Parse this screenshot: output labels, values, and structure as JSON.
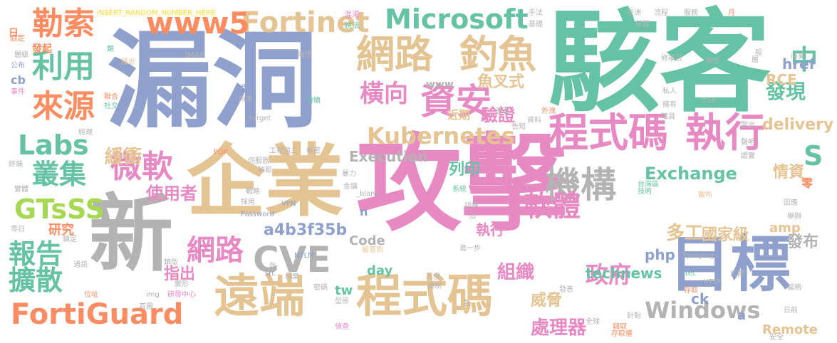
{
  "palette": {
    "blue": "#8fa0cc",
    "green": "#66c2a5",
    "pink": "#e78ac3",
    "tan": "#e5c494",
    "orange": "#fc8d62",
    "gray": "#b3b3b3",
    "lime": "#a6d854",
    "yellow": "#ffd92f"
  },
  "words": [
    "漏洞",
    "駭客",
    "攻擊",
    "企業",
    "新",
    "目標",
    "遠端",
    "程式碼",
    "網路",
    "釣魚",
    "資安",
    "程式碼",
    "執行",
    "Kubernetes",
    "Microsoft",
    "Fortinet",
    "www5",
    "勒索",
    "利用",
    "來源",
    "Labs",
    "叢集",
    "微軟",
    "GTsSS",
    "報告",
    "擴散",
    "FortiGuard",
    "CVE",
    "網路",
    "機構",
    "軟體",
    "政府",
    "Windows",
    "處理器",
    "Exchange",
    "橫向",
    "驗證",
    "魚叉式",
    "中",
    "發現",
    "delivery",
    "情資",
    "S",
    "列印",
    "使用者",
    "緩衝",
    "a4b3f35b",
    "Execution",
    "Code",
    "day",
    "technews",
    "組織",
    "威脅",
    "執行",
    "多工",
    "國家級",
    "href",
    "RCE",
    "php",
    "amp",
    "發布",
    "ck",
    "tw",
    "Remote",
    "指出",
    "研究",
    "INSERT_RANDOM_NUMBER_HERE",
    "發起",
    "協定",
    "IMAP",
    "Password",
    "VPN",
    "NTLM",
    "_blank",
    "www",
    "近期",
    "n",
    "a",
    "零",
    "target",
    "TOR",
    "Spraying",
    "HTTP",
    "tec",
    "POP",
    "src",
    "img",
    "研發中心",
    "混淆",
    "說法",
    "層級",
    "公布",
    "事件",
    "聯合",
    "社交",
    "接近",
    "類",
    "屬性",
    "日",
    "cb",
    "提出",
    "尚未",
    "持續",
    "透過",
    "告知",
    "資料",
    "外洩",
    "職員",
    "私人",
    "擁有",
    "警示",
    "聲明",
    "證實",
    "台灣區",
    "技術",
    "散布",
    "因應",
    "舉辦",
    "入侵",
    "機制",
    "留意到",
    "進一步",
    "全球",
    "竊取",
    "存取權",
    "存取",
    "偵查",
    "型態",
    "發表",
    "密碼",
    "林樂",
    "年",
    "首圖",
    "位址",
    "變形",
    "類型",
    "通訊",
    "鎖定",
    "零日",
    "實體",
    "終端",
    "經理",
    "工程",
    "週二",
    "帳密",
    "伺服器",
    "輕鬆",
    "戰略",
    "採用",
    "暴力",
    "金鑰",
    "系統",
    "訓練",
    "須",
    "急",
    "公開",
    "當務",
    "層",
    "月",
    "服務",
    "商業",
    "流程",
    "修補日",
    "寄信",
    "般",
    "掌握",
    "亞洲",
    "手法",
    "基礎",
    "針對",
    "日前",
    "安全",
    "提升"
  ]
}
